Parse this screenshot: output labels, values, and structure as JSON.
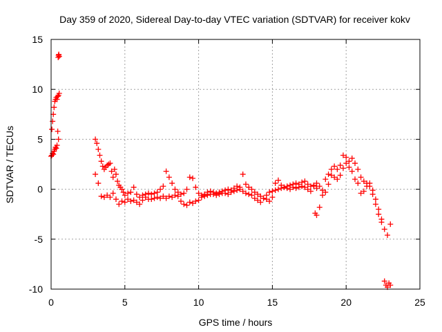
{
  "chart_data": {
    "type": "scatter",
    "title": "Day 359 of 2020, Sidereal Day-to-day VTEC variation (SDTVAR) for receiver kokv",
    "xlabel": "GPS time / hours",
    "ylabel": "SDTVAR / TECUs",
    "xlim": [
      0,
      25
    ],
    "ylim": [
      -10,
      15
    ],
    "xticks": [
      0,
      5,
      10,
      15,
      20,
      25
    ],
    "yticks": [
      -10,
      -5,
      0,
      5,
      10,
      15
    ],
    "xtick_labels": [
      "0",
      "5",
      "10",
      "15",
      "20",
      "25"
    ],
    "ytick_labels": [
      "-10",
      "-5",
      "0",
      "5",
      "10",
      "15"
    ],
    "grid": true,
    "marker": "+",
    "series_color": "#ff0000",
    "series": [
      {
        "name": "SDTVAR",
        "segments": [
          {
            "name": "early-rise",
            "x": [
              0.0,
              0.05,
              0.1,
              0.15,
              0.2,
              0.25,
              0.3,
              0.35,
              0.4,
              0.45,
              0.5,
              0.55
            ],
            "y": [
              3.3,
              6.0,
              6.8,
              7.5,
              8.2,
              8.8,
              9.0,
              9.2,
              9.0,
              9.3,
              9.4,
              9.6
            ]
          },
          {
            "name": "early-low",
            "x": [
              0.05,
              0.1,
              0.15,
              0.2,
              0.25,
              0.3,
              0.35,
              0.4,
              0.45,
              0.5
            ],
            "y": [
              3.4,
              3.6,
              3.5,
              3.8,
              4.0,
              4.2,
              4.1,
              4.4,
              5.8,
              5.0
            ]
          },
          {
            "name": "early-spike",
            "x": [
              0.48,
              0.5,
              0.52,
              0.55
            ],
            "y": [
              13.2,
              13.4,
              13.5,
              13.3
            ]
          },
          {
            "name": "main-upper",
            "x": [
              3.0,
              3.1,
              3.2,
              3.3,
              3.4,
              3.5,
              3.6,
              3.7,
              3.8,
              3.9,
              4.0,
              4.1,
              4.2,
              4.3,
              4.4,
              4.5,
              4.6,
              4.7,
              4.8,
              4.9,
              5.0,
              5.2,
              5.4,
              5.6,
              5.8,
              6.0,
              6.2,
              6.4,
              6.6,
              6.8,
              7.0,
              7.2,
              7.4,
              7.6,
              7.8,
              8.0,
              8.2,
              8.4,
              8.6,
              8.8,
              9.0,
              9.2,
              9.4,
              9.6,
              9.8,
              10.0,
              10.2,
              10.4,
              10.6,
              10.8,
              11.0,
              11.2,
              11.4,
              11.6,
              11.8,
              12.0,
              12.2,
              12.4,
              12.6,
              12.8,
              13.0,
              13.2,
              13.4,
              13.6,
              13.8,
              14.0,
              14.2,
              14.4,
              14.6,
              14.8,
              15.0,
              15.2,
              15.4,
              15.6,
              15.8,
              16.0,
              16.2,
              16.4,
              16.6,
              16.8,
              17.0,
              17.2,
              17.4,
              17.6,
              17.8,
              18.0,
              18.2,
              18.4,
              18.6,
              18.8,
              19.0,
              19.2,
              19.4,
              19.6,
              19.8,
              20.0,
              20.2,
              20.4,
              20.6,
              20.8,
              21.0,
              21.2,
              21.4,
              21.6,
              21.8,
              22.0,
              22.2,
              22.4,
              22.6,
              22.8,
              23.0
            ],
            "y": [
              5.0,
              4.6,
              4.0,
              3.4,
              2.8,
              2.3,
              2.0,
              2.2,
              2.4,
              2.5,
              2.6,
              1.8,
              1.2,
              2.0,
              1.5,
              0.8,
              0.4,
              0.2,
              0.0,
              -0.3,
              -0.6,
              -0.4,
              -0.3,
              0.2,
              -0.5,
              -0.8,
              -0.6,
              -0.5,
              -0.4,
              -0.5,
              -0.4,
              -0.3,
              0.0,
              0.3,
              1.8,
              1.2,
              0.6,
              0.0,
              -0.3,
              -0.5,
              -0.4,
              0.0,
              1.2,
              1.1,
              0.2,
              -0.4,
              -0.6,
              -0.5,
              -0.3,
              -0.2,
              -0.3,
              -0.4,
              -0.3,
              -0.2,
              -0.1,
              0.0,
              -0.1,
              0.1,
              0.3,
              0.2,
              1.5,
              0.5,
              0.2,
              0.0,
              -0.3,
              -0.5,
              -0.7,
              -0.9,
              -1.0,
              -1.2,
              -0.8,
              0.6,
              0.9,
              0.4,
              0.2,
              0.3,
              0.4,
              0.5,
              0.6,
              0.5,
              0.7,
              0.8,
              0.5,
              0.3,
              0.4,
              0.6,
              0.3,
              -0.1,
              1.0,
              1.5,
              2.0,
              2.3,
              2.0,
              2.4,
              3.4,
              3.2,
              2.8,
              3.1,
              2.6,
              2.0,
              1.2,
              0.8,
              0.6,
              0.3,
              -0.5,
              -1.5,
              -2.5,
              -3.3,
              -4.0,
              -4.6,
              -3.5
            ]
          },
          {
            "name": "main-lower",
            "x": [
              3.0,
              3.2,
              3.4,
              3.6,
              3.8,
              4.0,
              4.2,
              4.4,
              4.6,
              4.8,
              5.0,
              5.2,
              5.4,
              5.6,
              5.8,
              6.0,
              6.2,
              6.4,
              6.6,
              6.8,
              7.0,
              7.2,
              7.4,
              7.6,
              7.8,
              8.0,
              8.2,
              8.4,
              8.6,
              8.8,
              9.0,
              9.2,
              9.4,
              9.6,
              9.8,
              10.0,
              10.2,
              10.4,
              10.6,
              10.8,
              11.0,
              11.2,
              11.4,
              11.6,
              11.8,
              12.0,
              12.2,
              12.4,
              12.6,
              12.8,
              13.0,
              13.2,
              13.4,
              13.6,
              13.8,
              14.0,
              14.2,
              14.4,
              14.6,
              14.8,
              15.0,
              15.2,
              15.4,
              15.6,
              15.8,
              16.0,
              16.2,
              16.4,
              16.6,
              16.8,
              17.0,
              17.2,
              17.4,
              17.6,
              17.8,
              18.0,
              18.2,
              18.4,
              18.6,
              18.8,
              19.0,
              19.2,
              19.4,
              19.6,
              19.8,
              20.0,
              20.2,
              20.4,
              20.6,
              20.8,
              21.0,
              21.2,
              21.4,
              21.6,
              21.8,
              22.0,
              22.2,
              22.4
            ],
            "y": [
              1.5,
              0.6,
              -0.7,
              -0.8,
              -0.6,
              -0.8,
              -0.4,
              -1.0,
              -1.5,
              -1.2,
              -1.3,
              -1.0,
              -1.2,
              -1.1,
              -1.3,
              -1.5,
              -1.1,
              -0.8,
              -1.0,
              -1.0,
              -0.9,
              -0.8,
              -0.9,
              -0.7,
              -0.9,
              -0.7,
              -0.8,
              -0.6,
              -0.7,
              -1.2,
              -1.5,
              -1.6,
              -1.3,
              -1.4,
              -1.2,
              -1.1,
              -0.8,
              -0.7,
              -0.6,
              -0.5,
              -0.5,
              -0.6,
              -0.5,
              -0.4,
              -0.4,
              -0.5,
              -0.3,
              -0.2,
              -0.1,
              0.0,
              -0.2,
              -0.4,
              -0.5,
              -0.6,
              -0.9,
              -1.1,
              -1.3,
              -0.9,
              -0.6,
              -0.3,
              -0.2,
              -0.1,
              0.0,
              0.1,
              0.2,
              0.1,
              0.0,
              0.2,
              0.1,
              0.2,
              0.3,
              0.2,
              0.0,
              -0.2,
              0.3,
              0.1,
              -1.8,
              -0.6,
              -0.3,
              0.5,
              1.4,
              1.2,
              1.0,
              1.4,
              2.1,
              2.6,
              2.2,
              1.8,
              1.0,
              0.6,
              -0.4,
              -0.2,
              0.3,
              0.6,
              -0.1,
              -1.0,
              -2.0,
              -3.0
            ]
          },
          {
            "name": "isolated-18",
            "x": [
              17.9,
              18.0
            ],
            "y": [
              -2.4,
              -2.6
            ]
          },
          {
            "name": "late-drop",
            "x": [
              22.6,
              22.7,
              22.8,
              22.9,
              23.0
            ],
            "y": [
              -9.2,
              -9.6,
              -9.8,
              -9.4,
              -9.6
            ]
          }
        ]
      }
    ]
  }
}
